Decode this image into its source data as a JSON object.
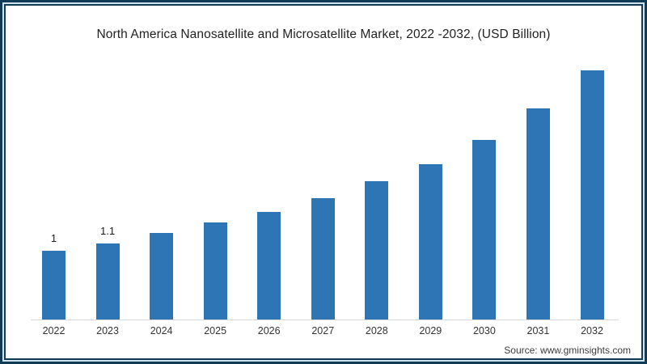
{
  "chart_data": {
    "type": "bar",
    "title": "North America Nanosatellite and Microsatellite Market, 2022 -2032, (USD Billion)",
    "categories": [
      "2022",
      "2023",
      "2024",
      "2025",
      "2026",
      "2027",
      "2028",
      "2029",
      "2030",
      "2031",
      "2032"
    ],
    "values": [
      1,
      1.1,
      1.25,
      1.4,
      1.55,
      1.75,
      2.0,
      2.25,
      2.6,
      3.05,
      3.6
    ],
    "bar_labels": [
      "1",
      "1.1",
      "",
      "",
      "",
      "",
      "",
      "",
      "",
      "",
      ""
    ],
    "xlabel": "",
    "ylabel": "",
    "ylim": [
      0,
      4
    ],
    "grid": false,
    "legend": false,
    "bar_color": "#2E75B6",
    "axis_line_color": "#D9D9D9"
  },
  "source": "Source: www.gminsights.com",
  "frame": {
    "outer_border_color": "#113B54",
    "inner_line_color": "#CFE3EE",
    "background": "#FFFFFF"
  }
}
